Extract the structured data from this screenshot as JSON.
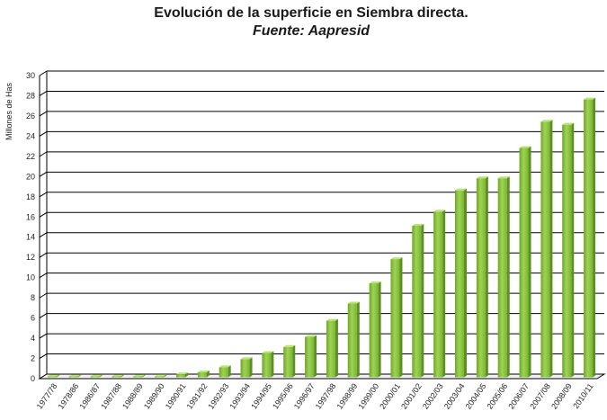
{
  "chart_data": {
    "type": "bar",
    "title": "Evolución de la superficie en Siembra directa.",
    "subtitle": "Fuente: Aapresid",
    "xlabel": "",
    "ylabel": "Millones de Has",
    "ylim": [
      0,
      30
    ],
    "yticks": [
      0,
      2,
      4,
      6,
      8,
      10,
      12,
      14,
      16,
      18,
      20,
      22,
      24,
      26,
      28,
      30
    ],
    "grid": true,
    "legend": "none",
    "bar_color": "#8cc63f",
    "categories": [
      "1977/78",
      "1978/86",
      "1986/87",
      "1987/88",
      "1988/89",
      "1989/90",
      "1990/91",
      "1991/92",
      "1992/93",
      "1993/94",
      "1994/95",
      "1995/96",
      "1996/97",
      "1997/98",
      "1998/99",
      "1999/00",
      "2000/01",
      "2001/02",
      "2002/03",
      "2003/04",
      "2004/05",
      "2005/06",
      "2006/07",
      "2007/08",
      "2008/09",
      "2010/11"
    ],
    "values": [
      0.0,
      0.0,
      0.0,
      0.0,
      0.05,
      0.1,
      0.3,
      0.5,
      1.0,
      1.8,
      2.4,
      3.0,
      4.0,
      5.6,
      7.3,
      9.3,
      11.7,
      15.0,
      16.4,
      18.5,
      19.7,
      19.7,
      22.7,
      25.3,
      25.0,
      27.5
    ]
  }
}
